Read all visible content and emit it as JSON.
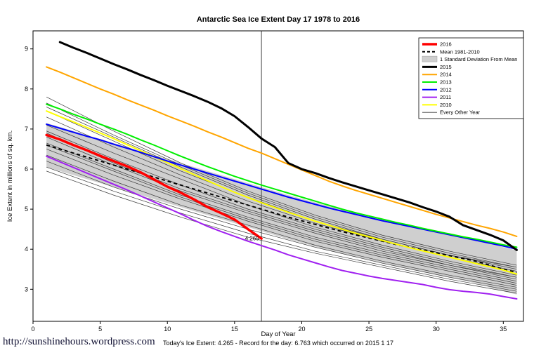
{
  "footer": {
    "url": "http://sunshinehours.wordpress.com",
    "caption": "Today's Ice Extent: 4.265 - Record for the day: 6.763 which occurred on 2015 1 17"
  },
  "chart_data": {
    "type": "line",
    "title": "Antarctic Sea Ice Extent Day 17 1978 to 2016",
    "xlabel": "Day of Year",
    "ylabel": "Ice Extent in millions of sq. km.",
    "xlim": [
      0,
      36.5
    ],
    "ylim": [
      2.2,
      9.45
    ],
    "xticks": [
      0,
      5,
      10,
      15,
      20,
      25,
      30,
      35
    ],
    "yticks": [
      3,
      4,
      5,
      6,
      7,
      8,
      9
    ],
    "grid": false,
    "legend_position": "top-right",
    "vline_x": 17,
    "vline_color": "#444444",
    "annotation": {
      "text": "4.265",
      "x": 16.3,
      "y": 4.22,
      "color": "#ff0000"
    },
    "days": [
      1,
      2,
      3,
      4,
      5,
      6,
      7,
      8,
      9,
      10,
      11,
      12,
      13,
      14,
      15,
      16,
      17,
      18,
      19,
      20,
      21,
      22,
      23,
      24,
      25,
      26,
      27,
      28,
      29,
      30,
      31,
      32,
      33,
      34,
      35,
      36
    ],
    "band": {
      "name": "1 Standard Deviation From Mean",
      "color": "#cfcfcf",
      "upper": [
        7.15,
        7.05,
        6.95,
        6.85,
        6.75,
        6.65,
        6.55,
        6.45,
        6.35,
        6.25,
        6.15,
        6.05,
        5.95,
        5.85,
        5.75,
        5.65,
        5.55,
        5.45,
        5.35,
        5.26,
        5.17,
        5.08,
        4.99,
        4.91,
        4.83,
        4.75,
        4.67,
        4.6,
        4.53,
        4.46,
        4.39,
        4.32,
        4.25,
        4.15,
        4.05,
        3.97
      ],
      "lower": [
        6.05,
        5.95,
        5.85,
        5.75,
        5.65,
        5.55,
        5.45,
        5.35,
        5.25,
        5.15,
        5.05,
        4.95,
        4.85,
        4.75,
        4.65,
        4.55,
        4.45,
        4.35,
        4.25,
        4.16,
        4.07,
        3.98,
        3.89,
        3.81,
        3.73,
        3.65,
        3.57,
        3.5,
        3.43,
        3.36,
        3.29,
        3.22,
        3.15,
        3.05,
        2.95,
        2.87
      ]
    },
    "mean": {
      "name": "Mean 1981-2010",
      "color": "#000000",
      "style": "dashed",
      "values": [
        6.6,
        6.5,
        6.4,
        6.3,
        6.2,
        6.1,
        6.0,
        5.9,
        5.8,
        5.7,
        5.6,
        5.5,
        5.4,
        5.3,
        5.2,
        5.1,
        5.0,
        4.9,
        4.8,
        4.71,
        4.62,
        4.53,
        4.44,
        4.36,
        4.28,
        4.2,
        4.12,
        4.05,
        3.98,
        3.91,
        3.84,
        3.77,
        3.7,
        3.6,
        3.5,
        3.42
      ]
    },
    "series": [
      {
        "name": "2010",
        "color": "#FFFF00",
        "width": 2,
        "values": [
          7.45,
          7.31,
          7.18,
          7.04,
          6.9,
          6.76,
          6.61,
          6.46,
          6.31,
          6.16,
          6.01,
          5.86,
          5.71,
          5.56,
          5.42,
          5.29,
          5.16,
          5.04,
          4.92,
          4.81,
          4.7,
          4.6,
          4.5,
          4.4,
          4.31,
          4.22,
          4.13,
          4.04,
          3.96,
          3.88,
          3.8,
          3.72,
          3.64,
          3.56,
          3.48,
          3.38
        ]
      },
      {
        "name": "2011",
        "color": "#A020F0",
        "width": 2,
        "values": [
          6.32,
          6.18,
          6.04,
          5.9,
          5.76,
          5.62,
          5.48,
          5.33,
          5.18,
          5.03,
          4.88,
          4.72,
          4.57,
          4.44,
          4.32,
          4.2,
          4.09,
          3.98,
          3.86,
          3.76,
          3.66,
          3.56,
          3.47,
          3.4,
          3.33,
          3.27,
          3.22,
          3.17,
          3.12,
          3.05,
          2.99,
          2.95,
          2.92,
          2.88,
          2.82,
          2.76
        ]
      },
      {
        "name": "2012",
        "color": "#0000FF",
        "width": 2,
        "values": [
          7.12,
          7.02,
          6.92,
          6.82,
          6.73,
          6.62,
          6.52,
          6.42,
          6.31,
          6.2,
          6.1,
          6.0,
          5.9,
          5.8,
          5.7,
          5.6,
          5.5,
          5.4,
          5.3,
          5.21,
          5.12,
          5.03,
          4.95,
          4.87,
          4.79,
          4.71,
          4.64,
          4.57,
          4.5,
          4.43,
          4.36,
          4.29,
          4.22,
          4.15,
          4.08,
          4.0
        ]
      },
      {
        "name": "2013",
        "color": "#00EE00",
        "width": 2,
        "values": [
          7.62,
          7.5,
          7.37,
          7.25,
          7.12,
          7.0,
          6.87,
          6.73,
          6.6,
          6.46,
          6.32,
          6.19,
          6.06,
          5.94,
          5.82,
          5.71,
          5.6,
          5.5,
          5.4,
          5.3,
          5.2,
          5.1,
          5.0,
          4.91,
          4.83,
          4.75,
          4.67,
          4.6,
          4.52,
          4.45,
          4.38,
          4.31,
          4.25,
          4.18,
          4.11,
          4.05
        ]
      },
      {
        "name": "2014",
        "color": "#FFA500",
        "width": 2,
        "values": [
          8.55,
          8.42,
          8.28,
          8.14,
          8.0,
          7.87,
          7.73,
          7.6,
          7.47,
          7.33,
          7.2,
          7.07,
          6.93,
          6.8,
          6.66,
          6.52,
          6.4,
          6.26,
          6.12,
          5.98,
          5.84,
          5.7,
          5.58,
          5.47,
          5.37,
          5.27,
          5.17,
          5.07,
          4.97,
          4.87,
          4.78,
          4.69,
          4.6,
          4.52,
          4.43,
          4.32
        ]
      },
      {
        "name": "2015",
        "color": "#000000",
        "width": 3,
        "x": [
          2,
          3,
          4,
          5,
          6,
          7,
          8,
          9,
          10,
          11,
          12,
          13,
          14,
          15,
          16,
          17,
          18,
          19,
          20,
          21,
          22,
          23,
          24,
          25,
          26,
          27,
          28,
          29,
          30,
          31,
          32,
          33,
          34,
          35,
          36
        ],
        "values": [
          9.17,
          9.03,
          8.9,
          8.76,
          8.62,
          8.49,
          8.35,
          8.22,
          8.08,
          7.95,
          7.82,
          7.68,
          7.52,
          7.32,
          7.05,
          6.763,
          6.55,
          6.15,
          6.0,
          5.9,
          5.78,
          5.67,
          5.57,
          5.47,
          5.37,
          5.27,
          5.17,
          5.05,
          4.94,
          4.81,
          4.6,
          4.48,
          4.36,
          4.22,
          3.98
        ]
      },
      {
        "name": "2016",
        "color": "#FF0000",
        "width": 3.5,
        "values": [
          6.85,
          6.74,
          6.6,
          6.47,
          6.33,
          6.2,
          6.07,
          5.92,
          5.74,
          5.56,
          5.41,
          5.24,
          5.05,
          4.9,
          4.74,
          4.5,
          4.265
        ]
      }
    ],
    "background_name": "Every Other Year",
    "background_color": "#3a3a3a",
    "background_x": [
      1,
      6,
      11,
      16,
      21,
      26,
      31,
      36
    ],
    "background_series": [
      [
        7.8,
        6.95,
        6.15,
        5.45,
        4.85,
        4.35,
        3.95,
        3.6
      ],
      [
        7.55,
        6.8,
        6.05,
        5.35,
        4.75,
        4.25,
        3.85,
        3.55
      ],
      [
        7.3,
        6.55,
        5.85,
        5.2,
        4.65,
        4.2,
        3.8,
        3.45
      ],
      [
        7.1,
        6.4,
        5.75,
        5.1,
        4.55,
        4.1,
        3.7,
        3.35
      ],
      [
        6.95,
        6.25,
        5.6,
        5.0,
        4.5,
        4.05,
        3.65,
        3.3
      ],
      [
        6.8,
        6.1,
        5.45,
        4.9,
        4.4,
        3.95,
        3.6,
        3.25
      ],
      [
        6.65,
        6.0,
        5.35,
        4.8,
        4.3,
        3.9,
        3.55,
        3.2
      ],
      [
        6.5,
        5.85,
        5.25,
        4.7,
        4.2,
        3.8,
        3.45,
        3.1
      ],
      [
        6.35,
        5.7,
        5.1,
        4.6,
        4.1,
        3.7,
        3.35,
        3.05
      ],
      [
        6.2,
        5.55,
        5.0,
        4.5,
        4.05,
        3.65,
        3.3,
        3.0
      ],
      [
        6.05,
        5.45,
        4.9,
        4.4,
        3.95,
        3.6,
        3.25,
        2.95
      ],
      [
        5.95,
        5.35,
        4.8,
        4.3,
        3.9,
        3.55,
        3.2,
        2.9
      ],
      [
        7.65,
        6.85,
        6.1,
        5.4,
        4.8,
        4.3,
        3.9,
        3.55
      ],
      [
        7.45,
        6.7,
        5.95,
        5.3,
        4.7,
        4.25,
        3.85,
        3.5
      ],
      [
        6.9,
        6.15,
        5.5,
        4.95,
        4.45,
        4.0,
        3.6,
        3.3
      ],
      [
        6.6,
        5.95,
        5.3,
        4.75,
        4.25,
        3.85,
        3.5,
        3.15
      ]
    ],
    "legend": {
      "items": [
        {
          "label": "2016",
          "swatch": "line",
          "color": "#FF0000",
          "width": 3.5
        },
        {
          "label": "Mean 1981-2010",
          "swatch": "dashed",
          "color": "#000000",
          "width": 2
        },
        {
          "label": "1 Standard Deviation From Mean",
          "swatch": "box",
          "color": "#cfcfcf"
        },
        {
          "label": "2015",
          "swatch": "line",
          "color": "#000000",
          "width": 3
        },
        {
          "label": "2014",
          "swatch": "line",
          "color": "#FFA500",
          "width": 2
        },
        {
          "label": "2013",
          "swatch": "line",
          "color": "#00EE00",
          "width": 2
        },
        {
          "label": "2012",
          "swatch": "line",
          "color": "#0000FF",
          "width": 2
        },
        {
          "label": "2011",
          "swatch": "line",
          "color": "#A020F0",
          "width": 2
        },
        {
          "label": "2010",
          "swatch": "line",
          "color": "#FFFF00",
          "width": 2
        },
        {
          "label": "Every Other Year",
          "swatch": "line",
          "color": "#3a3a3a",
          "width": 0.8
        }
      ]
    }
  }
}
